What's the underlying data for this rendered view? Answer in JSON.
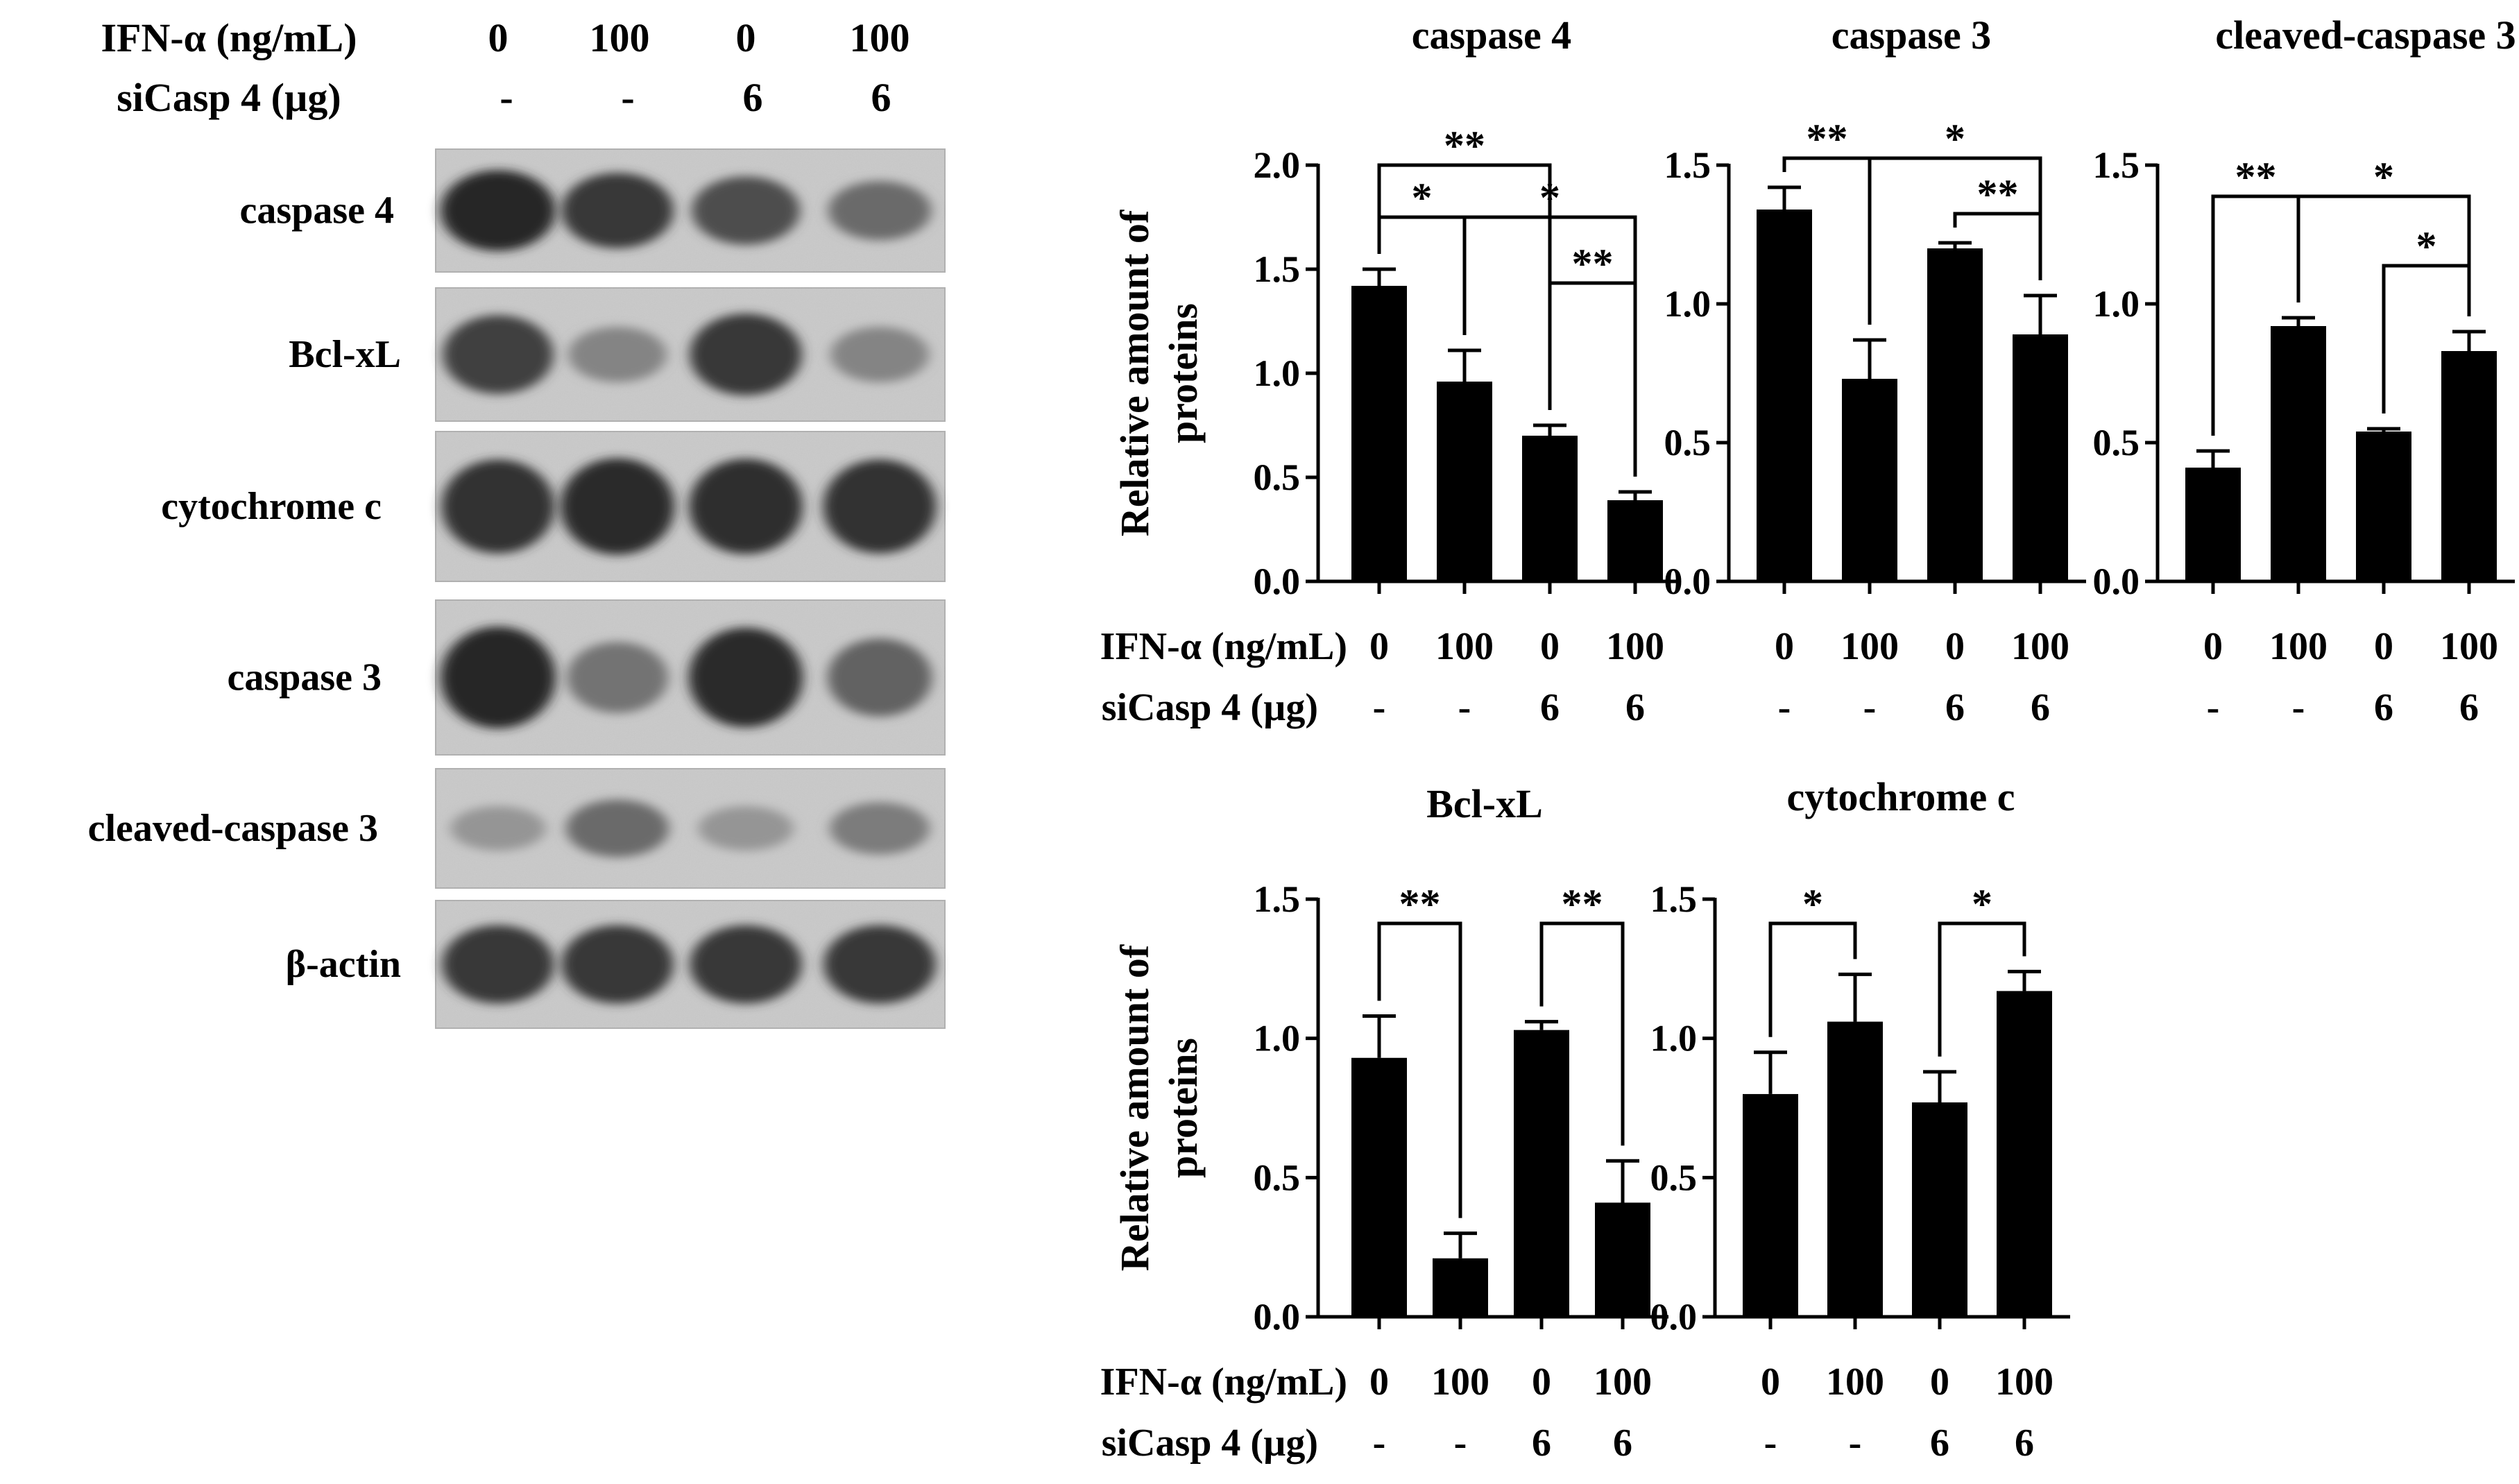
{
  "blot": {
    "header": {
      "ifn_label": "IFN-α (ng/mL)",
      "ifn_values": [
        "0",
        "100",
        "0",
        "100"
      ],
      "sicasp_label": "siCasp 4 (µg)",
      "sicasp_values": [
        "-",
        "-",
        "6",
        "6"
      ]
    },
    "rows": [
      {
        "label": "caspase 4",
        "band_intensity": [
          0.95,
          0.85,
          0.72,
          0.55
        ]
      },
      {
        "label": "Bcl-xL",
        "band_intensity": [
          0.8,
          0.4,
          0.85,
          0.4
        ]
      },
      {
        "label": "cytochrome c",
        "band_intensity": [
          0.88,
          0.92,
          0.9,
          0.88
        ]
      },
      {
        "label": "caspase 3",
        "band_intensity": [
          0.95,
          0.5,
          0.92,
          0.6
        ]
      },
      {
        "label": "cleaved-caspase 3",
        "band_intensity": [
          0.3,
          0.55,
          0.3,
          0.45
        ]
      },
      {
        "label": "β-actin",
        "band_intensity": [
          0.85,
          0.85,
          0.85,
          0.85
        ]
      }
    ]
  },
  "chart_data": [
    {
      "type": "bar",
      "title": "caspase 4",
      "ylabel_line1": "Relative amount of",
      "ylabel_line2": "proteins",
      "categories": [
        "0",
        "100",
        "0",
        "100"
      ],
      "row2": [
        "-",
        "-",
        "6",
        "6"
      ],
      "row1_label": "IFN-α (ng/mL)",
      "row2_label": "siCasp 4 (µg)",
      "values": [
        1.42,
        0.96,
        0.7,
        0.39
      ],
      "errors": [
        0.08,
        0.15,
        0.05,
        0.04
      ],
      "ylim": [
        0,
        2.0
      ],
      "yticks": [
        "0.0",
        "0.5",
        "1.0",
        "1.5",
        "2.0"
      ],
      "significance": [
        {
          "from": 0,
          "to": 2,
          "label": "**"
        },
        {
          "from": 0,
          "to": 1,
          "label": "*"
        },
        {
          "from": 1,
          "to": 3,
          "label": "*"
        },
        {
          "from": 2,
          "to": 3,
          "label": "**"
        }
      ]
    },
    {
      "type": "bar",
      "title": "caspase 3",
      "categories": [
        "0",
        "100",
        "0",
        "100"
      ],
      "row2": [
        "-",
        "-",
        "6",
        "6"
      ],
      "values": [
        1.34,
        0.73,
        1.2,
        0.89
      ],
      "errors": [
        0.08,
        0.14,
        0.02,
        0.14
      ],
      "ylim": [
        0,
        1.5
      ],
      "yticks": [
        "0.0",
        "0.5",
        "1.0",
        "1.5"
      ],
      "significance": [
        {
          "from": 0,
          "to": 1,
          "label": "**"
        },
        {
          "from": 1,
          "to": 3,
          "label": "*"
        },
        {
          "from": 2,
          "to": 3,
          "label": "**"
        }
      ]
    },
    {
      "type": "bar",
      "title": "cleaved-caspase 3",
      "categories": [
        "0",
        "100",
        "0",
        "100"
      ],
      "row2": [
        "-",
        "-",
        "6",
        "6"
      ],
      "values": [
        0.41,
        0.92,
        0.54,
        0.83
      ],
      "errors": [
        0.06,
        0.03,
        0.01,
        0.07
      ],
      "ylim": [
        0,
        1.5
      ],
      "yticks": [
        "0.0",
        "0.5",
        "1.0",
        "1.5"
      ],
      "significance": [
        {
          "from": 0,
          "to": 1,
          "label": "**"
        },
        {
          "from": 1,
          "to": 3,
          "label": "*"
        },
        {
          "from": 2,
          "to": 3,
          "label": "*"
        }
      ]
    },
    {
      "type": "bar",
      "title": "Bcl-xL",
      "ylabel_line1": "Relative amount of",
      "ylabel_line2": "proteins",
      "categories": [
        "0",
        "100",
        "0",
        "100"
      ],
      "row2": [
        "-",
        "-",
        "6",
        "6"
      ],
      "row1_label": "IFN-α (ng/mL)",
      "row2_label": "siCasp 4 (µg)",
      "values": [
        0.93,
        0.21,
        1.03,
        0.41
      ],
      "errors": [
        0.15,
        0.09,
        0.03,
        0.15
      ],
      "ylim": [
        0,
        1.5
      ],
      "yticks": [
        "0.0",
        "0.5",
        "1.0",
        "1.5"
      ],
      "significance": [
        {
          "from": 0,
          "to": 1,
          "label": "**"
        },
        {
          "from": 2,
          "to": 3,
          "label": "**"
        }
      ]
    },
    {
      "type": "bar",
      "title": "cytochrome c",
      "categories": [
        "0",
        "100",
        "0",
        "100"
      ],
      "row2": [
        "-",
        "-",
        "6",
        "6"
      ],
      "values": [
        0.8,
        1.06,
        0.77,
        1.17
      ],
      "errors": [
        0.15,
        0.17,
        0.11,
        0.07
      ],
      "ylim": [
        0,
        1.5
      ],
      "yticks": [
        "0.0",
        "0.5",
        "1.0",
        "1.5"
      ],
      "significance": [
        {
          "from": 0,
          "to": 1,
          "label": "*"
        },
        {
          "from": 2,
          "to": 3,
          "label": "*"
        }
      ]
    }
  ]
}
